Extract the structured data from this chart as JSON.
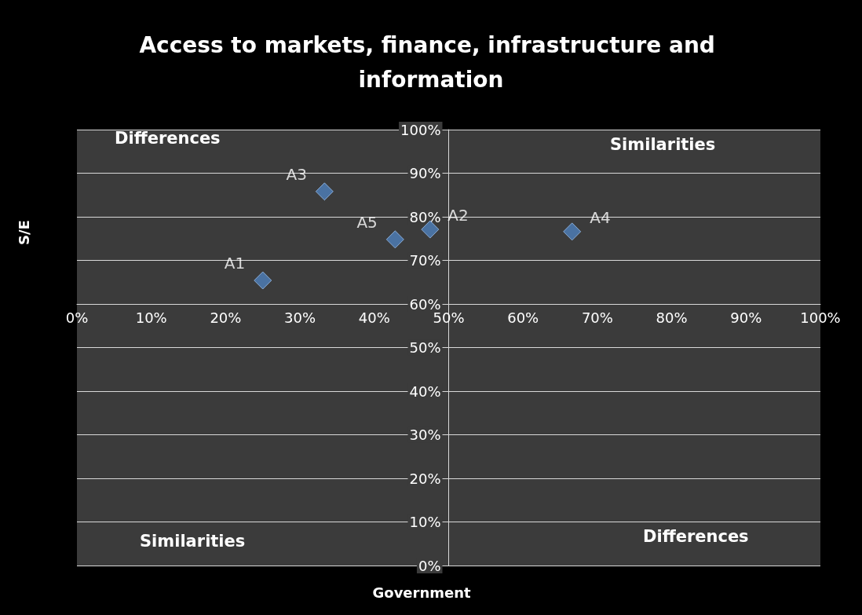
{
  "chart_data": {
    "type": "scatter",
    "title": "Access to markets, finance, infrastructure and information",
    "xlabel": "Government",
    "ylabel": "S/E",
    "annotations": [
      "Differences",
      "Similarities",
      "Similarities",
      "Differences"
    ],
    "series": [
      {
        "name": "A1",
        "color": "#4f81bd",
        "x": [
          25.0
        ],
        "values": [
          65.4
        ]
      },
      {
        "name": "A2",
        "color": "#4f81bd",
        "x": [
          47.5
        ],
        "values": [
          77.1
        ]
      },
      {
        "name": "A3",
        "color": "#4f81bd",
        "x": [
          33.3
        ],
        "values": [
          85.8
        ]
      },
      {
        "name": "A4",
        "color": "#4f81bd",
        "x": [
          66.6
        ],
        "values": [
          76.6
        ]
      },
      {
        "name": "A5",
        "color": "#4f81bd",
        "x": [
          42.8
        ],
        "values": [
          74.8
        ]
      }
    ],
    "xlim": [
      0,
      100
    ],
    "xticks": [
      {
        "value": 0,
        "label": "0%"
      },
      {
        "value": 10,
        "label": "10%"
      },
      {
        "value": 20,
        "label": "20%"
      },
      {
        "value": 30,
        "label": "30%"
      },
      {
        "value": 40,
        "label": "40%"
      },
      {
        "value": 50,
        "label": "50%"
      },
      {
        "value": 60,
        "label": "60%"
      },
      {
        "value": 70,
        "label": "70%"
      },
      {
        "value": 80,
        "label": "80%"
      },
      {
        "value": 90,
        "label": "90%"
      },
      {
        "value": 100,
        "label": "100%"
      }
    ],
    "ylim": [
      0,
      100
    ],
    "yticks": [
      {
        "value": 0,
        "label": "0%"
      },
      {
        "value": 10,
        "label": "10%"
      },
      {
        "value": 20,
        "label": "20%"
      },
      {
        "value": 30,
        "label": "30%"
      },
      {
        "value": 40,
        "label": "40%"
      },
      {
        "value": 50,
        "label": "50%"
      },
      {
        "value": 60,
        "label": "60%"
      },
      {
        "value": 70,
        "label": "70%"
      },
      {
        "value": 80,
        "label": "80%"
      },
      {
        "value": 90,
        "label": "90%"
      },
      {
        "value": 100,
        "label": "100%"
      }
    ],
    "grid": "y",
    "legend": false,
    "marker": "diamond"
  }
}
